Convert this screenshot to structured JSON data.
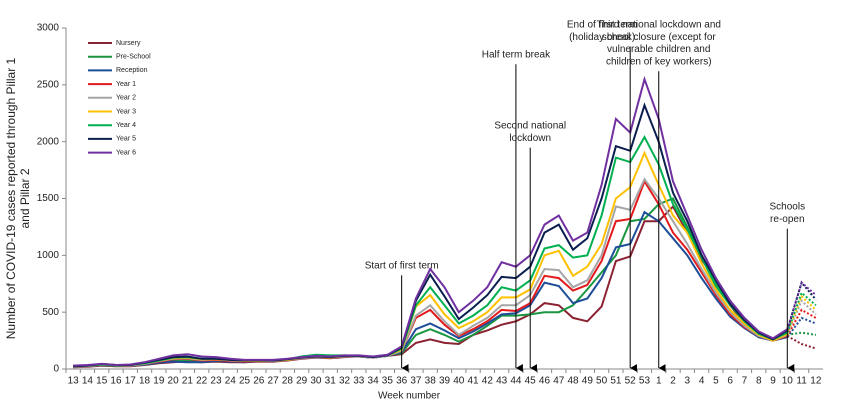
{
  "chart_data": {
    "type": "line",
    "y_label": [
      "Number of COVID-19 cases reported  through Pillar 1",
      "and Pillar 2"
    ],
    "x_label": "Week number",
    "categories": [
      "13",
      "14",
      "15",
      "16",
      "17",
      "18",
      "19",
      "20",
      "21",
      "22",
      "23",
      "24",
      "25",
      "26",
      "27",
      "28",
      "29",
      "30",
      "31",
      "32",
      "33",
      "34",
      "35",
      "36",
      "37",
      "38",
      "39",
      "40",
      "41",
      "42",
      "43",
      "44",
      "45",
      "46",
      "47",
      "48",
      "49",
      "50",
      "51",
      "52",
      "53",
      "1",
      "2",
      "3",
      "4",
      "5",
      "6",
      "7",
      "8",
      "9",
      "10",
      "11",
      "12"
    ],
    "ylim": [
      0,
      3000
    ],
    "yticks": [
      0,
      500,
      1000,
      1500,
      2000,
      2500,
      3000
    ],
    "dotted_from": "11",
    "legend": "top-left",
    "series": [
      {
        "name": "Nursery",
        "color": "#8b2232",
        "values": [
          15,
          20,
          30,
          25,
          25,
          35,
          50,
          60,
          70,
          60,
          65,
          60,
          60,
          65,
          65,
          75,
          90,
          100,
          95,
          105,
          110,
          100,
          115,
          130,
          230,
          260,
          230,
          220,
          300,
          340,
          390,
          420,
          480,
          580,
          560,
          450,
          420,
          550,
          950,
          990,
          1300,
          1300,
          1430,
          1200,
          960,
          800,
          560,
          400,
          280,
          250,
          290,
          220,
          180
        ]
      },
      {
        "name": "Pre-School",
        "color": "#1a9641",
        "values": [
          20,
          25,
          35,
          30,
          30,
          40,
          60,
          75,
          80,
          70,
          75,
          70,
          65,
          70,
          70,
          80,
          110,
          120,
          110,
          115,
          115,
          105,
          120,
          140,
          300,
          350,
          300,
          240,
          300,
          380,
          470,
          470,
          480,
          500,
          500,
          560,
          700,
          850,
          1000,
          1300,
          1320,
          1450,
          1500,
          1250,
          1000,
          750,
          580,
          440,
          300,
          250,
          300,
          320,
          300
        ]
      },
      {
        "name": "Reception",
        "color": "#1f4e99",
        "values": [
          20,
          25,
          35,
          30,
          30,
          40,
          55,
          65,
          60,
          60,
          70,
          65,
          60,
          70,
          70,
          80,
          100,
          105,
          100,
          110,
          110,
          100,
          115,
          150,
          350,
          400,
          340,
          270,
          330,
          400,
          480,
          490,
          560,
          760,
          730,
          580,
          620,
          800,
          1070,
          1100,
          1380,
          1300,
          1150,
          1000,
          800,
          620,
          460,
          360,
          280,
          250,
          280,
          450,
          400
        ]
      },
      {
        "name": "Year 1",
        "color": "#e31a1c",
        "values": [
          20,
          25,
          40,
          30,
          30,
          45,
          65,
          85,
          90,
          75,
          80,
          70,
          65,
          70,
          70,
          80,
          100,
          110,
          105,
          110,
          110,
          100,
          120,
          160,
          450,
          520,
          390,
          290,
          350,
          420,
          520,
          510,
          580,
          820,
          800,
          690,
          740,
          950,
          1300,
          1320,
          1650,
          1450,
          1200,
          1050,
          850,
          650,
          480,
          370,
          290,
          250,
          290,
          520,
          450
        ]
      },
      {
        "name": "Year 2",
        "color": "#a6a6a6",
        "values": [
          20,
          25,
          40,
          30,
          30,
          45,
          70,
          90,
          95,
          80,
          85,
          75,
          70,
          70,
          70,
          80,
          95,
          105,
          100,
          110,
          110,
          100,
          115,
          160,
          470,
          560,
          420,
          300,
          380,
          450,
          560,
          560,
          650,
          880,
          870,
          720,
          780,
          1000,
          1430,
          1400,
          1670,
          1500,
          1300,
          1100,
          880,
          670,
          500,
          380,
          290,
          250,
          300,
          600,
          480
        ]
      },
      {
        "name": "Year 3",
        "color": "#ffc000",
        "values": [
          25,
          30,
          40,
          30,
          35,
          50,
          75,
          95,
          100,
          85,
          85,
          80,
          70,
          70,
          75,
          80,
          100,
          110,
          100,
          115,
          115,
          105,
          120,
          170,
          550,
          650,
          480,
          360,
          420,
          500,
          630,
          630,
          700,
          1000,
          1040,
          820,
          900,
          1100,
          1500,
          1600,
          1900,
          1620,
          1350,
          1200,
          930,
          700,
          520,
          400,
          300,
          250,
          310,
          640,
          520
        ]
      },
      {
        "name": "Year 4",
        "color": "#00b050",
        "values": [
          25,
          30,
          40,
          30,
          35,
          50,
          75,
          100,
          105,
          90,
          90,
          80,
          75,
          75,
          75,
          85,
          110,
          125,
          120,
          120,
          115,
          105,
          120,
          180,
          560,
          720,
          560,
          400,
          470,
          560,
          720,
          690,
          780,
          1060,
          1090,
          980,
          1000,
          1350,
          1860,
          1820,
          2040,
          1800,
          1450,
          1230,
          980,
          730,
          560,
          420,
          310,
          260,
          320,
          670,
          560
        ]
      },
      {
        "name": "Year 5",
        "color": "#0a1f4f",
        "values": [
          25,
          30,
          45,
          35,
          35,
          55,
          80,
          105,
          110,
          90,
          90,
          80,
          75,
          75,
          75,
          85,
          100,
          110,
          105,
          115,
          115,
          105,
          120,
          190,
          600,
          830,
          640,
          440,
          540,
          650,
          810,
          800,
          900,
          1200,
          1270,
          1050,
          1150,
          1500,
          1960,
          1920,
          2320,
          2000,
          1550,
          1300,
          1000,
          780,
          570,
          430,
          320,
          260,
          340,
          760,
          610
        ]
      },
      {
        "name": "Year 6",
        "color": "#7030a0",
        "values": [
          30,
          35,
          45,
          35,
          40,
          60,
          90,
          120,
          130,
          110,
          105,
          90,
          80,
          80,
          80,
          90,
          105,
          115,
          110,
          120,
          120,
          110,
          125,
          200,
          620,
          880,
          720,
          500,
          600,
          720,
          940,
          900,
          1000,
          1270,
          1350,
          1130,
          1200,
          1620,
          2200,
          2080,
          2550,
          2200,
          1650,
          1350,
          1050,
          800,
          600,
          450,
          330,
          270,
          350,
          760,
          650
        ]
      }
    ],
    "annotations": [
      {
        "category": "36",
        "lines": [
          "Start of first term"
        ]
      },
      {
        "category": "44",
        "lines": [
          "Half term break"
        ]
      },
      {
        "category": "45",
        "lines": [
          "Second national",
          "lockdown"
        ]
      },
      {
        "category": "52",
        "lines": [
          "End of first term",
          "(holiday break)"
        ]
      },
      {
        "category": "1",
        "lines": [
          "Third national lockdown and",
          "school closure (except for",
          "vulnerable children and",
          "children of key workers)"
        ]
      },
      {
        "category": "10",
        "lines": [
          "Schools",
          "re-open"
        ]
      }
    ]
  }
}
